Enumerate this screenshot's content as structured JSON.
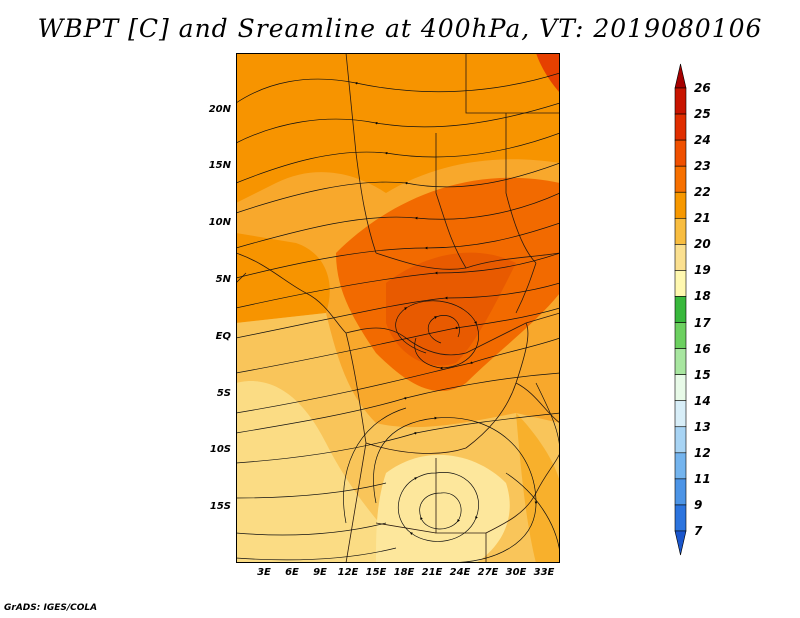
{
  "title": "WBPT [C] and Sreamline at 400hPa, VT: 2019080106",
  "lat_labels": [
    "20N",
    "15N",
    "10N",
    "5N",
    "EQ",
    "5S",
    "10S",
    "15S"
  ],
  "lon_labels": [
    "3E",
    "6E",
    "9E",
    "12E",
    "15E",
    "18E",
    "21E",
    "24E",
    "27E",
    "30E",
    "33E"
  ],
  "colorbar": {
    "labels": [
      "26",
      "25",
      "24",
      "23",
      "22",
      "21",
      "20",
      "19",
      "18",
      "17",
      "16",
      "15",
      "14",
      "13",
      "12",
      "11",
      "9",
      "7"
    ],
    "colors": [
      "#a50000",
      "#c81400",
      "#e02e00",
      "#f05000",
      "#f77000",
      "#f79800",
      "#f8bd40",
      "#fbe090",
      "#fff8b0",
      "#38b83c",
      "#6cd060",
      "#a8e6a0",
      "#e8fae8",
      "#d8eef8",
      "#a8d4f4",
      "#74b4ee",
      "#4c94e6",
      "#2c74de",
      "#1a56cc"
    ]
  },
  "credit": "GrADS: IGES/COLA"
}
